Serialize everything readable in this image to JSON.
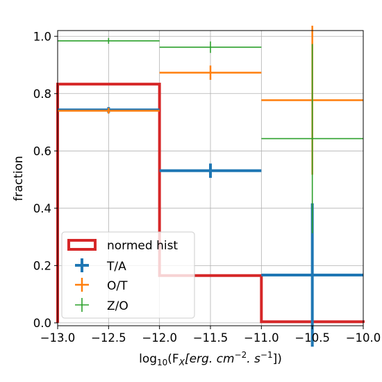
{
  "chart_data": {
    "type": "step-hist-with-errorbars",
    "xlabel_parts": [
      "log",
      "10",
      "(F",
      "X",
      "[erg. cm",
      "−2",
      ". s",
      "−1",
      "])"
    ],
    "ylabel": "fraction",
    "xlim": [
      -13.0,
      -10.0
    ],
    "ylim": [
      -0.01,
      1.02
    ],
    "x_ticks": [
      -13.0,
      -12.5,
      -12.0,
      -11.5,
      -11.0,
      -10.5,
      -10.0
    ],
    "x_tick_labels": [
      "−13.0",
      "−12.5",
      "−12.0",
      "−11.5",
      "−11.0",
      "−10.5",
      "−10.0"
    ],
    "y_ticks": [
      0.0,
      0.2,
      0.4,
      0.6,
      0.8,
      1.0
    ],
    "y_tick_labels": [
      "0.0",
      "0.2",
      "0.4",
      "0.6",
      "0.8",
      "1.0"
    ],
    "grid": true,
    "legend_position": "lower-left",
    "hist": {
      "name": "normed hist",
      "color": "#d62728",
      "bin_edges": [
        -13.0,
        -12.0,
        -11.0,
        -10.0
      ],
      "values": [
        0.833,
        0.165,
        0.004
      ]
    },
    "series": [
      {
        "name": "T/A",
        "color": "#1f77b4",
        "points": [
          {
            "x": -12.5,
            "xerr": 0.5,
            "y": 0.743,
            "yerr": 0.01
          },
          {
            "x": -11.5,
            "xerr": 0.5,
            "y": 0.531,
            "yerr": 0.025
          },
          {
            "x": -10.5,
            "xerr": 0.5,
            "y": 0.167,
            "yerr": 0.25
          }
        ]
      },
      {
        "name": "O/T",
        "color": "#ff7f0e",
        "points": [
          {
            "x": -12.5,
            "xerr": 0.5,
            "y": 0.74,
            "yerr": 0.01
          },
          {
            "x": -11.5,
            "xerr": 0.5,
            "y": 0.873,
            "yerr": 0.025
          },
          {
            "x": -10.5,
            "xerr": 0.5,
            "y": 0.777,
            "yerr": 0.26
          }
        ]
      },
      {
        "name": "Z/O",
        "color": "#2ca02c",
        "points": [
          {
            "x": -12.5,
            "xerr": 0.5,
            "y": 0.984,
            "yerr": 0.01
          },
          {
            "x": -11.5,
            "xerr": 0.5,
            "y": 0.962,
            "yerr": 0.02
          },
          {
            "x": -10.5,
            "xerr": 0.5,
            "y": 0.643,
            "yerr": 0.33
          }
        ]
      }
    ]
  }
}
